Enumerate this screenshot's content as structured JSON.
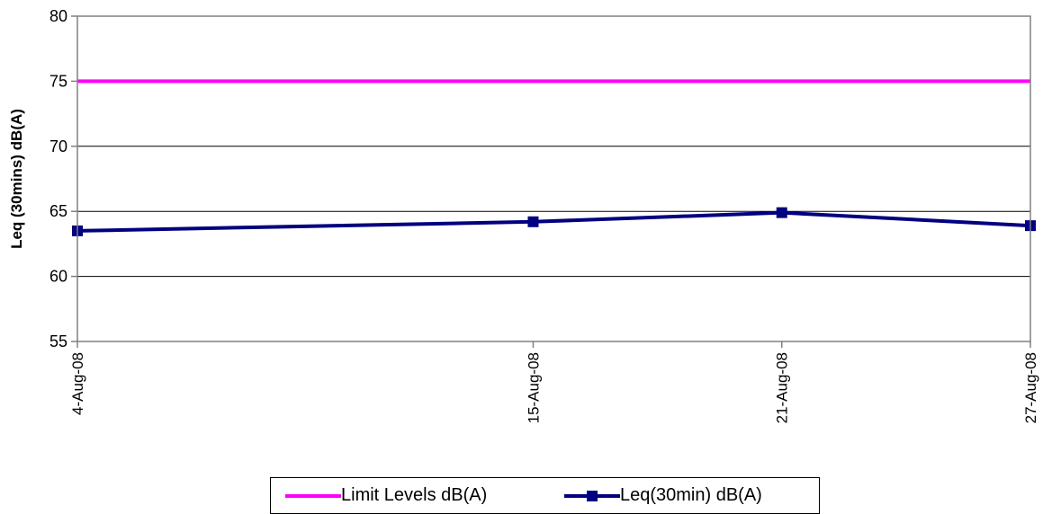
{
  "chart_data": {
    "type": "line",
    "title": "",
    "xlabel": "",
    "ylabel": "Leq (30mins) dB(A)",
    "categories": [
      "4-Aug-08",
      "15-Aug-08",
      "21-Aug-08",
      "27-Aug-08"
    ],
    "x_dates": [
      "2008-08-04",
      "2008-08-15",
      "2008-08-21",
      "2008-08-27"
    ],
    "ylim": [
      55,
      80
    ],
    "yticks": [
      "55",
      "60",
      "65",
      "70",
      "75",
      "80"
    ],
    "grid": true,
    "legend_position": "bottom",
    "series": [
      {
        "name": "Limit Levels dB(A)",
        "color": "#ff00ff",
        "marker": "none",
        "values": [
          75,
          75,
          75,
          75
        ]
      },
      {
        "name": "Leq(30min) dB(A)",
        "color": "#000080",
        "marker": "square",
        "values": [
          63.5,
          64.2,
          64.9,
          63.9
        ]
      }
    ]
  }
}
